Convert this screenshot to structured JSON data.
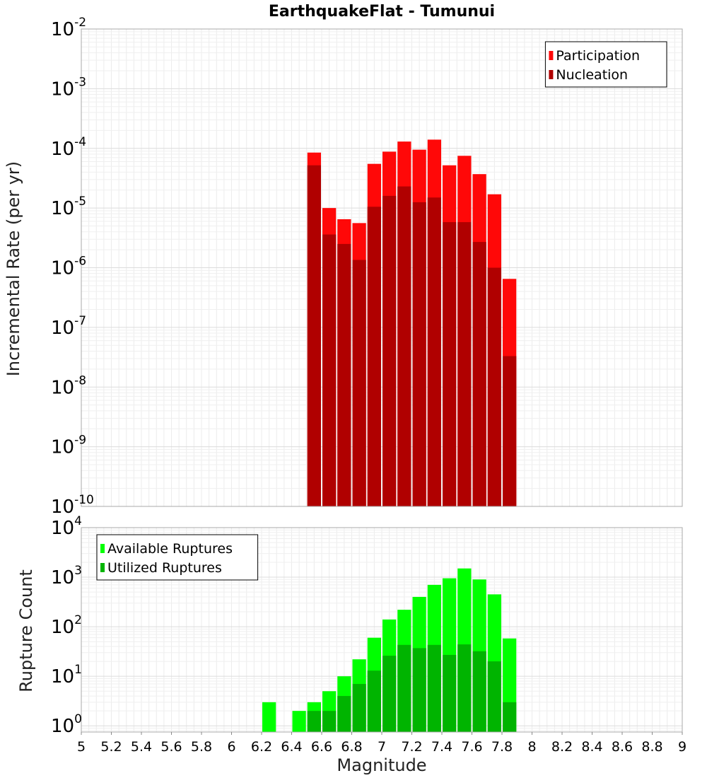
{
  "chart_data": [
    {
      "type": "bar",
      "panel": "top",
      "title": "EarthquakeFlat - Tumunui",
      "xlabel": "",
      "ylabel": "Incremental Rate (per yr)",
      "yscale": "log",
      "ylim": [
        1e-10,
        0.01
      ],
      "xlim": [
        5,
        9
      ],
      "ytick_exponents": [
        -10,
        -9,
        -8,
        -7,
        -6,
        -5,
        -4,
        -3,
        -2
      ],
      "ytick_base": "10",
      "grid": true,
      "legend_position": "top-right",
      "bin_width": 0.1,
      "series": [
        {
          "name": "Participation",
          "color": "#ff0808",
          "x": [
            6.55,
            6.65,
            6.75,
            6.85,
            6.95,
            7.05,
            7.15,
            7.25,
            7.35,
            7.45,
            7.55,
            7.65,
            7.75,
            7.85
          ],
          "values": [
            8.5e-05,
            1e-05,
            6.5e-06,
            5.6e-06,
            5.5e-05,
            8.8e-05,
            0.00013,
            9.5e-05,
            0.00014,
            5.2e-05,
            7.5e-05,
            3.7e-05,
            1.7e-05,
            6.5e-07
          ]
        },
        {
          "name": "Nucleation",
          "color": "#b00000",
          "x": [
            6.55,
            6.65,
            6.75,
            6.85,
            6.95,
            7.05,
            7.15,
            7.25,
            7.35,
            7.45,
            7.55,
            7.65,
            7.75,
            7.85
          ],
          "values": [
            5.2e-05,
            3.6e-06,
            2.5e-06,
            1.35e-06,
            1.05e-05,
            1.6e-05,
            2.3e-05,
            1.25e-05,
            1.5e-05,
            5.8e-06,
            5.8e-06,
            2.7e-06,
            1e-06,
            3.3e-08
          ]
        }
      ]
    },
    {
      "type": "bar",
      "panel": "bottom",
      "title": "",
      "xlabel": "Magnitude",
      "ylabel": "Rupture Count",
      "yscale": "log",
      "ylim": [
        0.75,
        10000
      ],
      "xlim": [
        5,
        9
      ],
      "ytick_exponents": [
        0,
        1,
        2,
        3,
        4
      ],
      "ytick_base": "10",
      "xticks": [
        "5",
        "5.2",
        "5.4",
        "5.6",
        "5.8",
        "6",
        "6.2",
        "6.4",
        "6.6",
        "6.8",
        "7",
        "7.2",
        "7.4",
        "7.6",
        "7.8",
        "8",
        "8.2",
        "8.4",
        "8.6",
        "8.8",
        "9"
      ],
      "grid": true,
      "legend_position": "top-left",
      "bin_width": 0.1,
      "series": [
        {
          "name": "Available Ruptures",
          "color": "#00ff00",
          "x": [
            6.25,
            6.45,
            6.55,
            6.65,
            6.75,
            6.85,
            6.95,
            7.05,
            7.15,
            7.25,
            7.35,
            7.45,
            7.55,
            7.65,
            7.75,
            7.85
          ],
          "values": [
            3,
            2,
            3,
            5,
            10,
            22,
            60,
            140,
            220,
            400,
            700,
            950,
            1500,
            900,
            450,
            58
          ]
        },
        {
          "name": "Utilized Ruptures",
          "color": "#00b400",
          "x": [
            6.25,
            6.45,
            6.55,
            6.65,
            6.75,
            6.85,
            6.95,
            7.05,
            7.15,
            7.25,
            7.35,
            7.45,
            7.55,
            7.65,
            7.75,
            7.85
          ],
          "values": [
            0,
            0,
            2,
            2,
            4,
            7,
            13,
            26,
            43,
            37,
            43,
            27,
            44,
            32,
            20,
            3
          ]
        }
      ]
    }
  ]
}
